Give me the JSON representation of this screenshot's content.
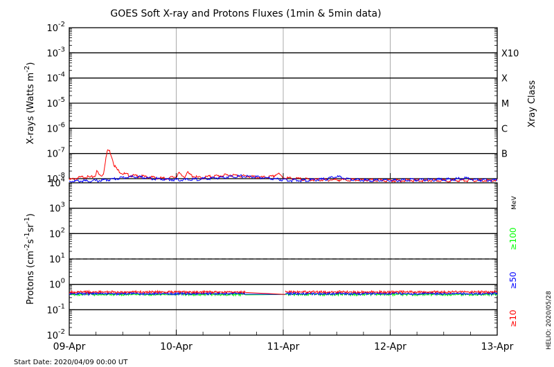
{
  "chart_data": {
    "type": "line",
    "title": "GOES Soft X-ray and Protons Fluxes   (1min & 5min data)",
    "start_date_text": "Start Date: 2020/04/09 00:00 UT",
    "credit": "HELIO: 2020/05/28",
    "x_ticks": [
      "09-Apr",
      "10-Apr",
      "11-Apr",
      "12-Apr",
      "13-Apr"
    ],
    "x_range": [
      0,
      4
    ],
    "xrays": {
      "ylabel": {
        "pre": "X-rays (Watts m",
        "sup": "-2",
        "post": ")"
      },
      "ylim_exp": [
        -8,
        -2
      ],
      "yscale": "log",
      "class_axis_label": "Xray Class",
      "class_labels": [
        {
          "label": "X10",
          "exp": -3
        },
        {
          "label": "X",
          "exp": -4
        },
        {
          "label": "M",
          "exp": -5
        },
        {
          "label": "C",
          "exp": -6
        },
        {
          "label": "B",
          "exp": -7
        }
      ],
      "series": [
        {
          "color": "#ff0000",
          "x": [
            0.0,
            0.05,
            0.1,
            0.15,
            0.2,
            0.24,
            0.26,
            0.28,
            0.3,
            0.32,
            0.34,
            0.36,
            0.38,
            0.4,
            0.42,
            0.45,
            0.5,
            0.55,
            0.6,
            0.7,
            0.8,
            0.9,
            0.95,
            1.0,
            1.02,
            1.05,
            1.08,
            1.1,
            1.12,
            1.15,
            1.2,
            1.25,
            1.3,
            1.4,
            1.5,
            1.6,
            1.7,
            1.8,
            1.9,
            1.95,
            2.0,
            2.1,
            2.2,
            2.3,
            2.5,
            3.0,
            3.5,
            4.0
          ],
          "y": [
            9e-09,
            1e-08,
            1.1e-08,
            1.2e-08,
            1.1e-08,
            1.3e-08,
            2e-08,
            1.4e-08,
            1.3e-08,
            1.6e-08,
            6e-08,
            1.4e-07,
            1.2e-07,
            7e-08,
            3.5e-08,
            2.2e-08,
            1.6e-08,
            1.4e-08,
            1.3e-08,
            1.2e-08,
            1.1e-08,
            1e-08,
            1.1e-08,
            1.2e-08,
            1.7e-08,
            1.3e-08,
            1.2e-08,
            1.8e-08,
            1.5e-08,
            1.3e-08,
            1.1e-08,
            1.1e-08,
            1.2e-08,
            1.3e-08,
            1.4e-08,
            1.3e-08,
            1.2e-08,
            1.1e-08,
            1.2e-08,
            1.6e-08,
            1.1e-08,
            1e-08,
            9.5e-09,
            9e-09,
            9e-09,
            8.5e-09,
            8.5e-09,
            8.5e-09
          ]
        },
        {
          "color": "#0000ff",
          "x": [
            0.0,
            0.1,
            0.2,
            0.3,
            0.4,
            0.5,
            0.6,
            0.7,
            0.8,
            0.9,
            1.0,
            1.1,
            1.2,
            1.3,
            1.4,
            1.5,
            1.6,
            1.7,
            1.8,
            1.9,
            2.0,
            2.1,
            2.2,
            2.3,
            2.4,
            2.5,
            2.6,
            2.7,
            2.8,
            2.9,
            3.0,
            3.2,
            3.4,
            3.6,
            3.7,
            3.8,
            4.0
          ],
          "y": [
            8e-09,
            8e-09,
            8e-09,
            8.5e-09,
            9.5e-09,
            1.1e-08,
            1.2e-08,
            1.1e-08,
            1e-08,
            9.5e-09,
            9e-09,
            9e-09,
            9.5e-09,
            1e-08,
            1.1e-08,
            1.2e-08,
            1.25e-08,
            1.2e-08,
            1.1e-08,
            1e-08,
            9e-09,
            8.5e-09,
            8.5e-09,
            9e-09,
            9.5e-09,
            1.2e-08,
            1e-08,
            9e-09,
            8.5e-09,
            8.5e-09,
            8.5e-09,
            9e-09,
            9e-09,
            9.5e-09,
            1.05e-08,
            9e-09,
            8.5e-09
          ]
        }
      ]
    },
    "protons": {
      "ylabel": {
        "pre": "Protons (cm",
        "sup1": "-2",
        "mid": "s",
        "sup2": "-1",
        "mid2": "sr",
        "sup3": "-1",
        "post": ")"
      },
      "ylim_exp": [
        -2,
        4
      ],
      "yscale": "log",
      "dashed_level": 10,
      "unit_label": "MeV",
      "energy_labels": [
        {
          "label": "≥100",
          "color": "#00ff00"
        },
        {
          "label": "≥50",
          "color": "#0000ff"
        },
        {
          "label": "≥10",
          "color": "#ff0000"
        }
      ],
      "series": [
        {
          "color": "#00ff00",
          "level": 0.4,
          "x": [
            0.0,
            4.0
          ]
        },
        {
          "color": "#0000ff",
          "level": 0.43,
          "x": [
            0.0,
            4.0
          ]
        },
        {
          "color": "#ff0000",
          "level": 0.5,
          "x": [
            0.0,
            4.0
          ]
        }
      ],
      "data_gap": {
        "x": [
          1.65,
          2.02
        ],
        "from": 0.48,
        "to": 0.4
      }
    }
  }
}
